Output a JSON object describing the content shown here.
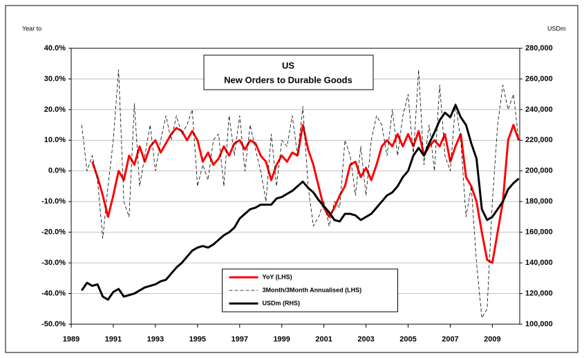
{
  "chart_data": {
    "type": "line",
    "title": "US",
    "subtitle": "New Orders to Durable Goods",
    "y_label": "Year to",
    "y2_label": "USDm",
    "x": [
      1989.5,
      1989.75,
      1990,
      1990.25,
      1990.5,
      1990.75,
      1991,
      1991.25,
      1991.5,
      1991.75,
      1992,
      1992.25,
      1992.5,
      1992.75,
      1993,
      1993.25,
      1993.5,
      1993.75,
      1994,
      1994.25,
      1994.5,
      1994.75,
      1995,
      1995.25,
      1995.5,
      1995.75,
      1996,
      1996.25,
      1996.5,
      1996.75,
      1997,
      1997.25,
      1997.5,
      1997.75,
      1998,
      1998.25,
      1998.5,
      1998.75,
      1999,
      1999.25,
      1999.5,
      1999.75,
      2000,
      2000.25,
      2000.5,
      2000.75,
      2001,
      2001.25,
      2001.5,
      2001.75,
      2002,
      2002.25,
      2002.5,
      2002.75,
      2003,
      2003.25,
      2003.5,
      2003.75,
      2004,
      2004.25,
      2004.5,
      2004.75,
      2005,
      2005.25,
      2005.5,
      2005.75,
      2006,
      2006.25,
      2006.5,
      2006.75,
      2007,
      2007.25,
      2007.5,
      2007.75,
      2008,
      2008.25,
      2008.5,
      2008.75,
      2009,
      2009.25,
      2009.5,
      2009.75,
      2010,
      2010.25
    ],
    "series": [
      {
        "name": "YoY (LHS)",
        "color": "#ff0000",
        "dash": false,
        "width": 3,
        "axis": "y",
        "values": [
          null,
          null,
          3,
          -2,
          -8,
          -15,
          -8,
          0,
          -3,
          5,
          2,
          8,
          3,
          8,
          10,
          6,
          9,
          12,
          14,
          13,
          10,
          13,
          10,
          3,
          6,
          2,
          4,
          8,
          5,
          9,
          10,
          7,
          10,
          9,
          5,
          3,
          -3,
          2,
          5,
          3,
          6,
          5,
          15,
          7,
          2,
          -5,
          -12,
          -15,
          -12,
          -8,
          -5,
          2,
          3,
          -2,
          1,
          -3,
          2,
          8,
          10,
          8,
          12,
          8,
          12,
          8,
          13,
          5,
          8,
          10,
          8,
          12,
          3,
          8,
          12,
          -2,
          -5,
          -10,
          -20,
          -29,
          -30,
          -20,
          -10,
          10,
          15,
          10
        ]
      },
      {
        "name": "3Month/3Month Annualised (LHS)",
        "color": "#000000",
        "dash": true,
        "width": 0.8,
        "axis": "y",
        "values": [
          15,
          0,
          5,
          -3,
          -22,
          -5,
          10,
          33,
          -10,
          -15,
          22,
          -5,
          5,
          15,
          0,
          10,
          18,
          10,
          18,
          12,
          15,
          20,
          -5,
          2,
          -3,
          10,
          12,
          -5,
          18,
          5,
          18,
          0,
          15,
          7,
          0,
          -10,
          12,
          -5,
          10,
          8,
          18,
          5,
          21,
          -5,
          -18,
          -15,
          -10,
          -18,
          -10,
          -12,
          10,
          5,
          -8,
          8,
          -8,
          10,
          18,
          15,
          5,
          20,
          5,
          18,
          25,
          5,
          33,
          2,
          15,
          0,
          28,
          5,
          0,
          22,
          10,
          -15,
          -5,
          -30,
          -48,
          -45,
          -10,
          15,
          28,
          20,
          25,
          10
        ]
      },
      {
        "name": "USDm (RHS)",
        "color": "#000000",
        "dash": false,
        "width": 3,
        "axis": "y2",
        "values": [
          122000,
          127000,
          125000,
          126000,
          118000,
          116000,
          121000,
          123000,
          118000,
          119000,
          120000,
          122000,
          124000,
          125000,
          126000,
          128000,
          129000,
          133000,
          137000,
          140000,
          144000,
          148000,
          150000,
          151000,
          150000,
          152000,
          155000,
          158000,
          160000,
          163000,
          169000,
          172000,
          175000,
          176000,
          178000,
          178000,
          178000,
          182000,
          183000,
          185000,
          187000,
          190000,
          193000,
          189000,
          186000,
          181000,
          177000,
          173000,
          168000,
          167000,
          172000,
          172000,
          171000,
          168000,
          170000,
          172000,
          176000,
          180000,
          184000,
          186000,
          190000,
          196000,
          200000,
          210000,
          215000,
          210000,
          218000,
          225000,
          233000,
          238000,
          235000,
          243000,
          235000,
          230000,
          218000,
          208000,
          175000,
          168000,
          170000,
          175000,
          180000,
          188000,
          192000,
          195000
        ]
      }
    ],
    "xlim": [
      1989,
      2010.3
    ],
    "xticks": [
      1989,
      1991,
      1993,
      1995,
      1997,
      1999,
      2001,
      2003,
      2005,
      2007,
      2009
    ],
    "ylim": [
      -50,
      40
    ],
    "yticks": [
      {
        "value": -50,
        "label": "-50.0%"
      },
      {
        "value": -40,
        "label": "-40.0%"
      },
      {
        "value": -30,
        "label": "-30.0%"
      },
      {
        "value": -20,
        "label": "-20.0%"
      },
      {
        "value": -10,
        "label": "-10.0%"
      },
      {
        "value": 0,
        "label": "0.0%"
      },
      {
        "value": 10,
        "label": "10.0%"
      },
      {
        "value": 20,
        "label": "20.0%"
      },
      {
        "value": 30,
        "label": "30.0%"
      },
      {
        "value": 40,
        "label": "40.0%"
      }
    ],
    "y2lim": [
      100000,
      280000
    ],
    "y2ticks": [
      {
        "value": 100000,
        "label": "100,000"
      },
      {
        "value": 120000,
        "label": "120,000"
      },
      {
        "value": 140000,
        "label": "140,000"
      },
      {
        "value": 160000,
        "label": "160,000"
      },
      {
        "value": 180000,
        "label": "180,000"
      },
      {
        "value": 200000,
        "label": "200,000"
      },
      {
        "value": 220000,
        "label": "220,000"
      },
      {
        "value": 240000,
        "label": "240,000"
      },
      {
        "value": 260000,
        "label": "260,000"
      },
      {
        "value": 280000,
        "label": "280,000"
      }
    ],
    "grid": true,
    "legend": "lower center"
  }
}
